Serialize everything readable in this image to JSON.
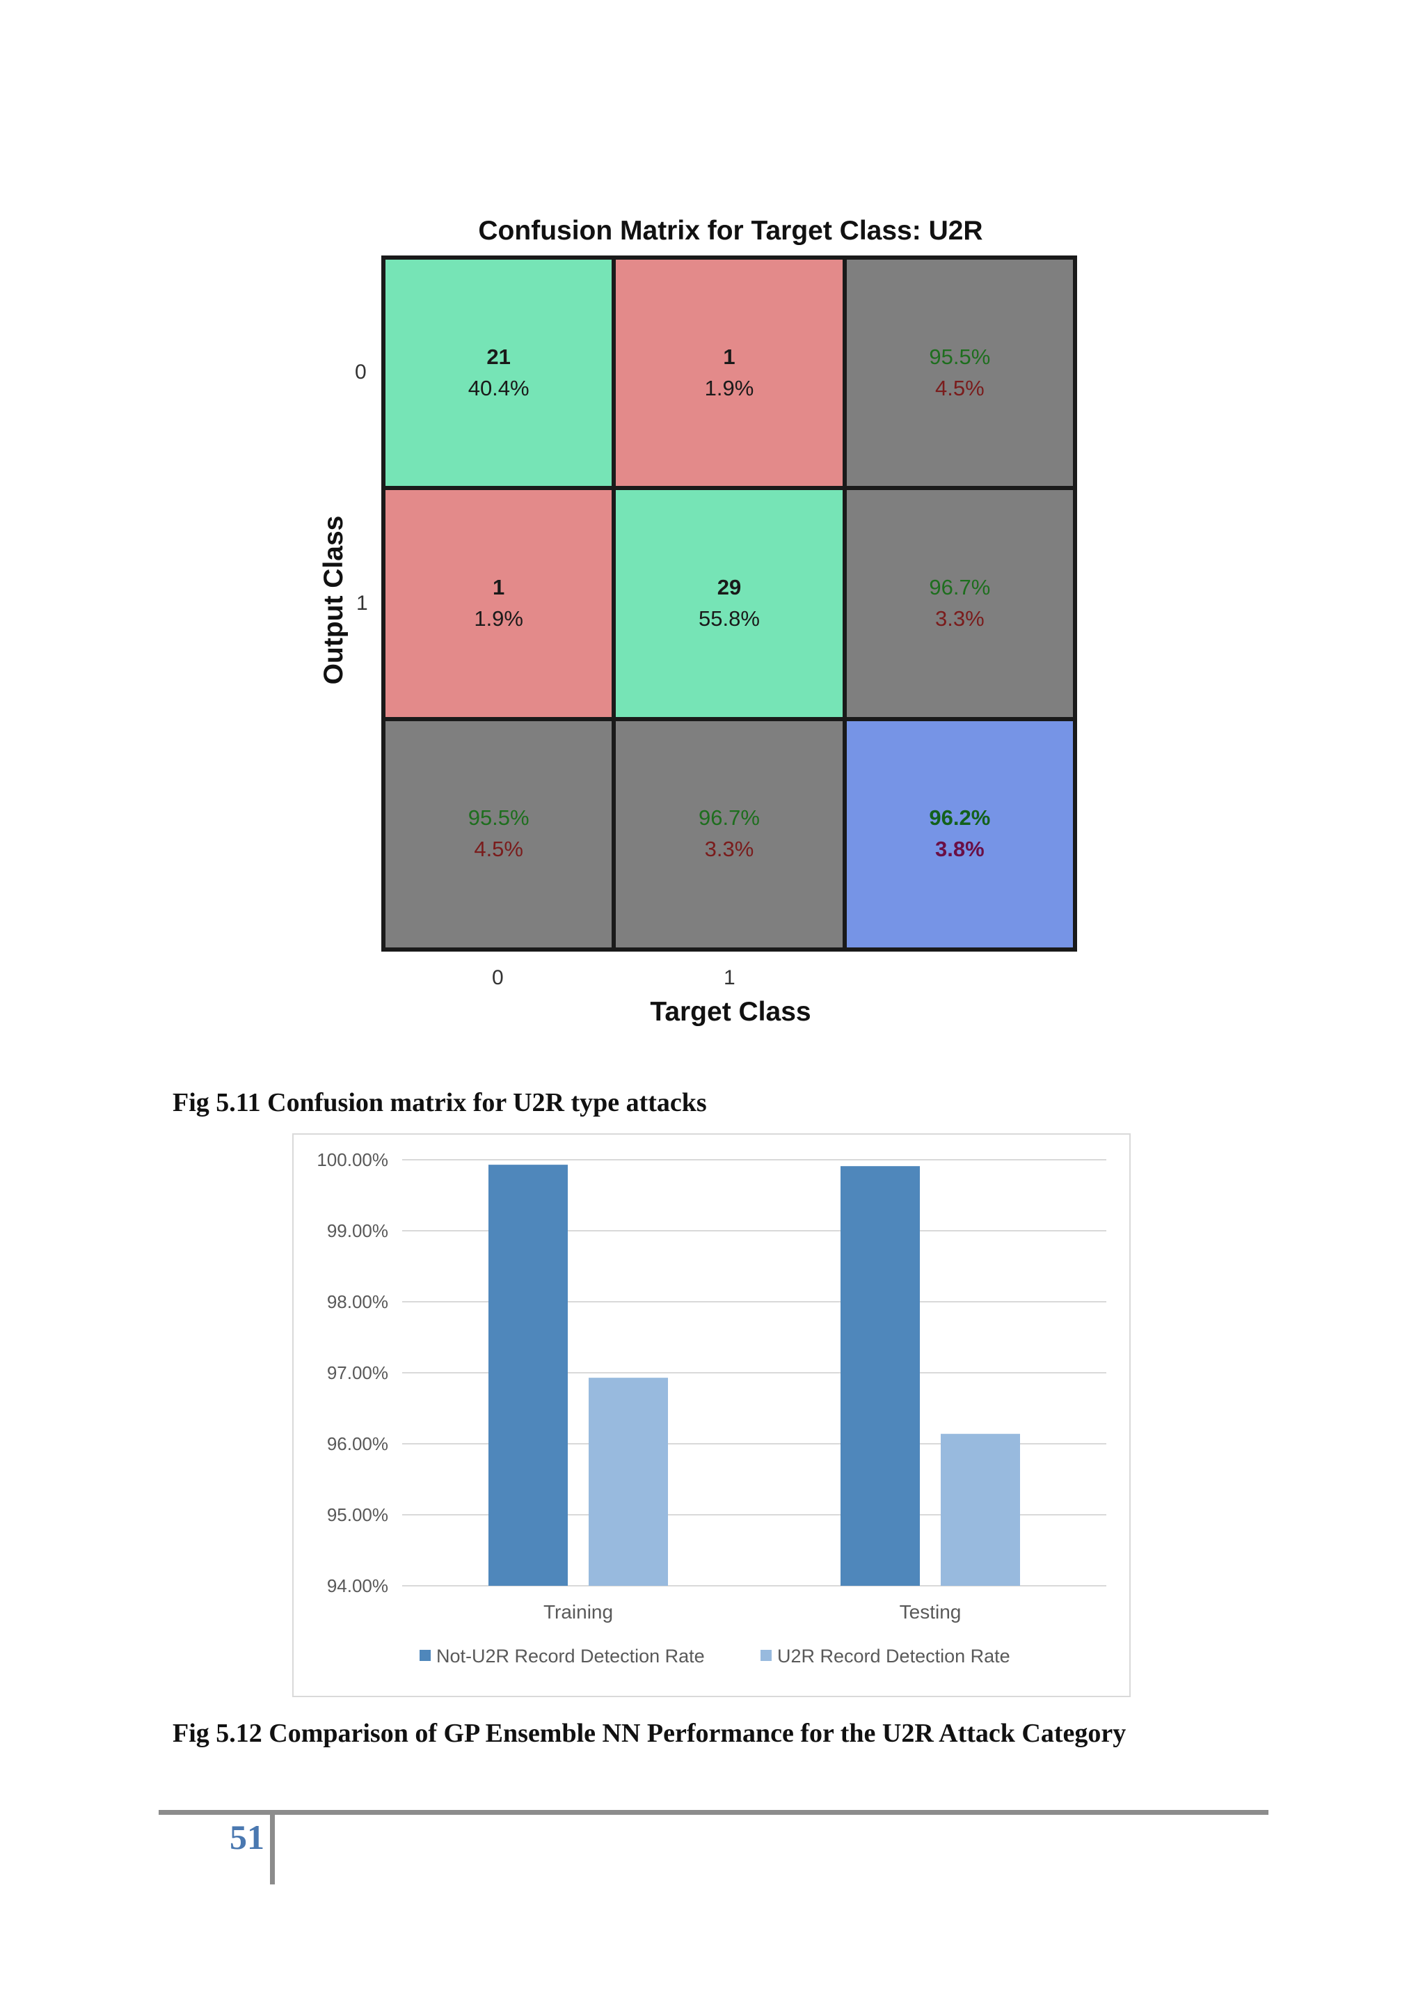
{
  "figure_1": {
    "chart_data": {
      "type": "heatmap",
      "title": "Confusion Matrix for Target Class: U2R",
      "xlabel": "Target Class",
      "ylabel": "Output Class",
      "x_ticks": [
        "0",
        "1"
      ],
      "y_ticks": [
        "0",
        "1"
      ],
      "cells": [
        [
          {
            "kind": "correct",
            "count": "21",
            "pct": "40.4%"
          },
          {
            "kind": "wrong",
            "count": "1",
            "pct": "1.9%"
          },
          {
            "kind": "summary",
            "good": "95.5%",
            "bad": "4.5%"
          }
        ],
        [
          {
            "kind": "wrong",
            "count": "1",
            "pct": "1.9%"
          },
          {
            "kind": "correct",
            "count": "29",
            "pct": "55.8%"
          },
          {
            "kind": "summary",
            "good": "96.7%",
            "bad": "3.3%"
          }
        ],
        [
          {
            "kind": "summary",
            "good": "95.5%",
            "bad": "4.5%"
          },
          {
            "kind": "summary",
            "good": "96.7%",
            "bad": "3.3%"
          },
          {
            "kind": "total",
            "good": "96.2%",
            "bad": "3.8%"
          }
        ]
      ],
      "colors": {
        "correct": "#76e4b6",
        "wrong": "#e38a8a",
        "summary": "#7f7f7f",
        "total": "#7694e6"
      }
    },
    "caption": "Fig 5.11 Confusion  matrix  for U2R type  attacks"
  },
  "figure_2": {
    "chart_data": {
      "type": "bar",
      "categories": [
        "Training",
        "Testing"
      ],
      "series": [
        {
          "name": "Not-U2R Record Detection Rate",
          "values": [
            99.93,
            99.91
          ],
          "color": "#4f87bb"
        },
        {
          "name": "U2R Record Detection Rate",
          "values": [
            96.93,
            96.14
          ],
          "color": "#98bade"
        }
      ],
      "ylim": [
        94,
        100
      ],
      "yticks": [
        "100.00%",
        "99.00%",
        "98.00%",
        "97.00%",
        "96.00%",
        "95.00%",
        "94.00%"
      ],
      "grid": true,
      "legend": "bottom"
    },
    "caption": "Fig 5.12 Comparison  of GP Ensemble  NN Performance  for the U2R Attack Category"
  },
  "footer": {
    "page_number": "51"
  }
}
